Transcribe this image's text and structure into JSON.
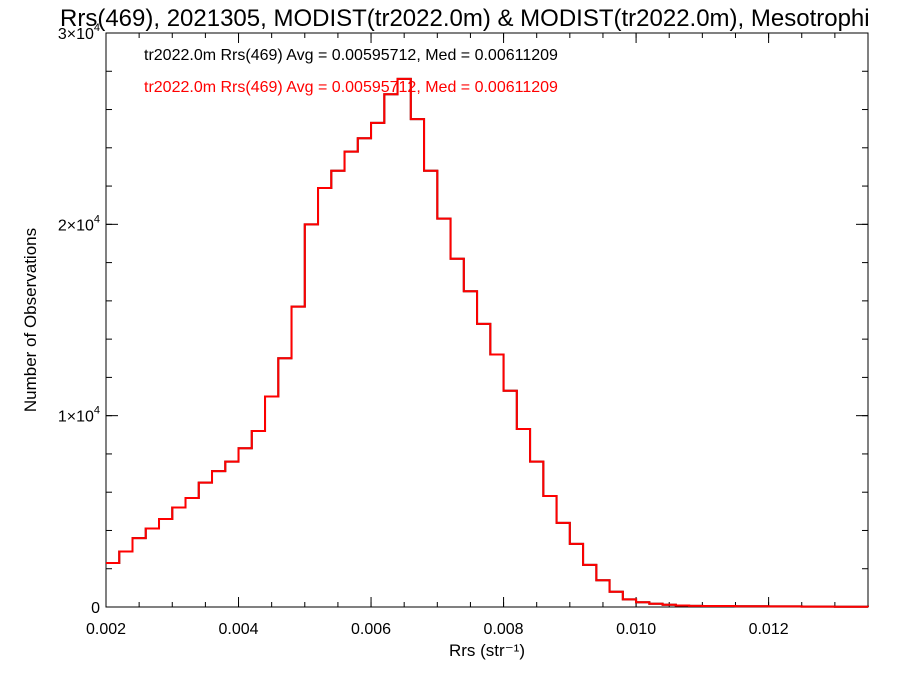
{
  "chart_data": {
    "type": "line",
    "title": "Rrs(469), 2021305, MODIST(tr2022.0m) & MODIST(tr2022.0m), Mesotrophi",
    "xlabel": "Rrs (str⁻¹)",
    "ylabel": "Number of Observations",
    "xlim": [
      0.002,
      0.0135
    ],
    "ylim": [
      0,
      30000
    ],
    "x_ticks": [
      0.002,
      0.004,
      0.006,
      0.008,
      0.01,
      0.012
    ],
    "x_tick_labels": [
      "0.002",
      "0.004",
      "0.006",
      "0.008",
      "0.010",
      "0.012"
    ],
    "y_ticks": [
      0,
      10000,
      20000,
      30000
    ],
    "y_tick_labels": [
      {
        "base": "0",
        "exp": ""
      },
      {
        "base": "1×10",
        "exp": "4"
      },
      {
        "base": "2×10",
        "exp": "4"
      },
      {
        "base": "3×10",
        "exp": "4"
      }
    ],
    "grid": false,
    "annotations": [
      {
        "text": "tr2022.0m Rrs(469) Avg = 0.00595712, Med = 0.00611209",
        "color": "#000000"
      },
      {
        "text": "tr2022.0m Rrs(469) Avg = 0.00595712, Med = 0.00611209",
        "color": "#ff0000"
      }
    ],
    "series": [
      {
        "color": "#000000",
        "x": [
          0.002,
          0.0022,
          0.0024,
          0.0026,
          0.0028,
          0.003,
          0.0032,
          0.0034,
          0.0036,
          0.0038,
          0.004,
          0.0042,
          0.0044,
          0.0046,
          0.0048,
          0.005,
          0.0052,
          0.0054,
          0.0056,
          0.0058,
          0.006,
          0.0062,
          0.0064,
          0.0066,
          0.0068,
          0.007,
          0.0072,
          0.0074,
          0.0076,
          0.0078,
          0.008,
          0.0082,
          0.0084,
          0.0086,
          0.0088,
          0.009,
          0.0092,
          0.0094,
          0.0096,
          0.0098,
          0.01,
          0.0102,
          0.0104,
          0.0106,
          0.0108,
          0.011,
          0.0115,
          0.012,
          0.0125,
          0.013,
          0.0135
        ],
        "values": [
          2300,
          2900,
          3600,
          4100,
          4600,
          5200,
          5700,
          6500,
          7100,
          7600,
          8300,
          9200,
          11000,
          13000,
          15700,
          20000,
          21900,
          22800,
          23800,
          24500,
          25300,
          26800,
          27600,
          25500,
          22800,
          20300,
          18200,
          16500,
          14800,
          13200,
          11300,
          9300,
          7600,
          5800,
          4400,
          3300,
          2200,
          1400,
          800,
          400,
          250,
          170,
          120,
          80,
          60,
          50,
          40,
          30,
          20,
          15,
          10
        ]
      },
      {
        "color": "#ff0000",
        "x": [
          0.002,
          0.0022,
          0.0024,
          0.0026,
          0.0028,
          0.003,
          0.0032,
          0.0034,
          0.0036,
          0.0038,
          0.004,
          0.0042,
          0.0044,
          0.0046,
          0.0048,
          0.005,
          0.0052,
          0.0054,
          0.0056,
          0.0058,
          0.006,
          0.0062,
          0.0064,
          0.0066,
          0.0068,
          0.007,
          0.0072,
          0.0074,
          0.0076,
          0.0078,
          0.008,
          0.0082,
          0.0084,
          0.0086,
          0.0088,
          0.009,
          0.0092,
          0.0094,
          0.0096,
          0.0098,
          0.01,
          0.0102,
          0.0104,
          0.0106,
          0.0108,
          0.011,
          0.0115,
          0.012,
          0.0125,
          0.013,
          0.0135
        ],
        "values": [
          2300,
          2900,
          3600,
          4100,
          4600,
          5200,
          5700,
          6500,
          7100,
          7600,
          8300,
          9200,
          11000,
          13000,
          15700,
          20000,
          21900,
          22800,
          23800,
          24500,
          25300,
          26800,
          27600,
          25500,
          22800,
          20300,
          18200,
          16500,
          14800,
          13200,
          11300,
          9300,
          7600,
          5800,
          4400,
          3300,
          2200,
          1400,
          800,
          400,
          250,
          170,
          120,
          80,
          60,
          50,
          40,
          30,
          20,
          15,
          10
        ]
      }
    ]
  }
}
